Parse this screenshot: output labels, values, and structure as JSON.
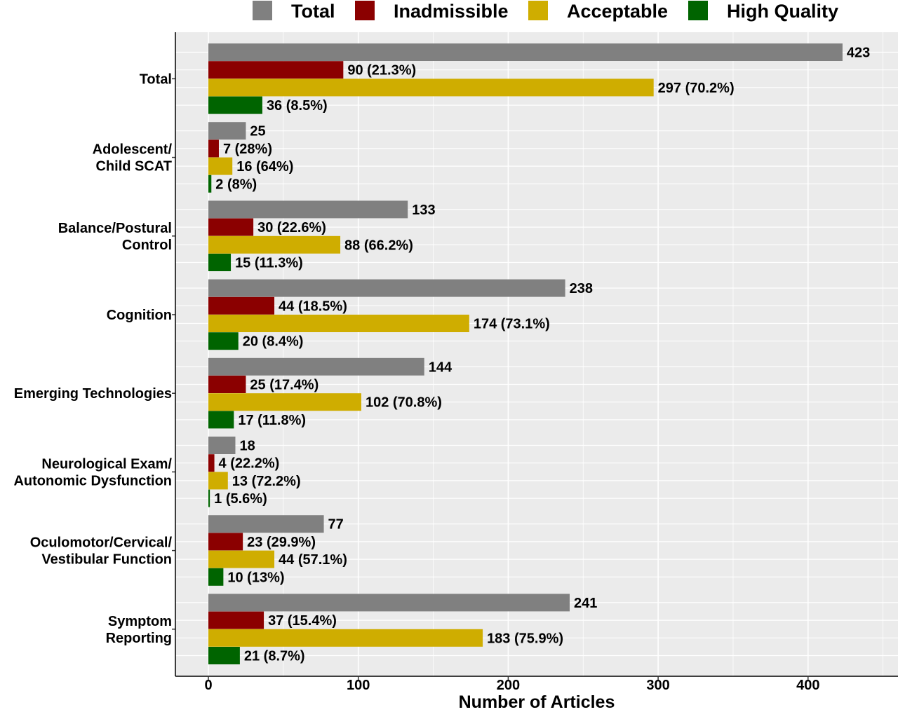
{
  "chart_data": {
    "type": "bar",
    "orientation": "horizontal",
    "title": "",
    "xlabel": "Number of Articles",
    "ylabel": "",
    "xlim": [
      -22,
      460
    ],
    "xticks": [
      0,
      100,
      200,
      300,
      400
    ],
    "grid": true,
    "legend": "top",
    "categories": [
      "Total",
      "Adolescent/\nChild SCAT",
      "Balance/Postural\nControl",
      "Cognition",
      "Emerging Technologies",
      "Neurological Exam/\nAutonomic Dysfunction",
      "Oculomotor/Cervical/\nVestibular Function",
      "Symptom\nReporting"
    ],
    "series": [
      {
        "name": "Total",
        "color": "#808080",
        "values": [
          423,
          25,
          133,
          238,
          144,
          18,
          77,
          241
        ],
        "labels": [
          "423",
          "25",
          "133",
          "238",
          "144",
          "18",
          "77",
          "241"
        ]
      },
      {
        "name": "Inadmissible",
        "color": "#8b0000",
        "values": [
          90,
          7,
          30,
          44,
          25,
          4,
          23,
          37
        ],
        "labels": [
          "90 (21.3%)",
          "7 (28%)",
          "30 (22.6%)",
          "44 (18.5%)",
          "25 (17.4%)",
          "4 (22.2%)",
          "23 (29.9%)",
          "37 (15.4%)"
        ]
      },
      {
        "name": "Acceptable",
        "color": "#cfad00",
        "values": [
          297,
          16,
          88,
          174,
          102,
          13,
          44,
          183
        ],
        "labels": [
          "297 (70.2%)",
          "16 (64%)",
          "88 (66.2%)",
          "174 (73.1%)",
          "102 (70.8%)",
          "13 (72.2%)",
          "44 (57.1%)",
          "183 (75.9%)"
        ]
      },
      {
        "name": "High Quality",
        "color": "#006400",
        "values": [
          36,
          2,
          15,
          20,
          17,
          1,
          10,
          21
        ],
        "labels": [
          "36 (8.5%)",
          "2 (8%)",
          "15 (11.3%)",
          "20 (8.4%)",
          "17 (11.8%)",
          "1 (5.6%)",
          "10 (13%)",
          "21 (8.7%)"
        ]
      }
    ],
    "panel_color": "#ebebeb",
    "grid_color": "#ffffff"
  }
}
